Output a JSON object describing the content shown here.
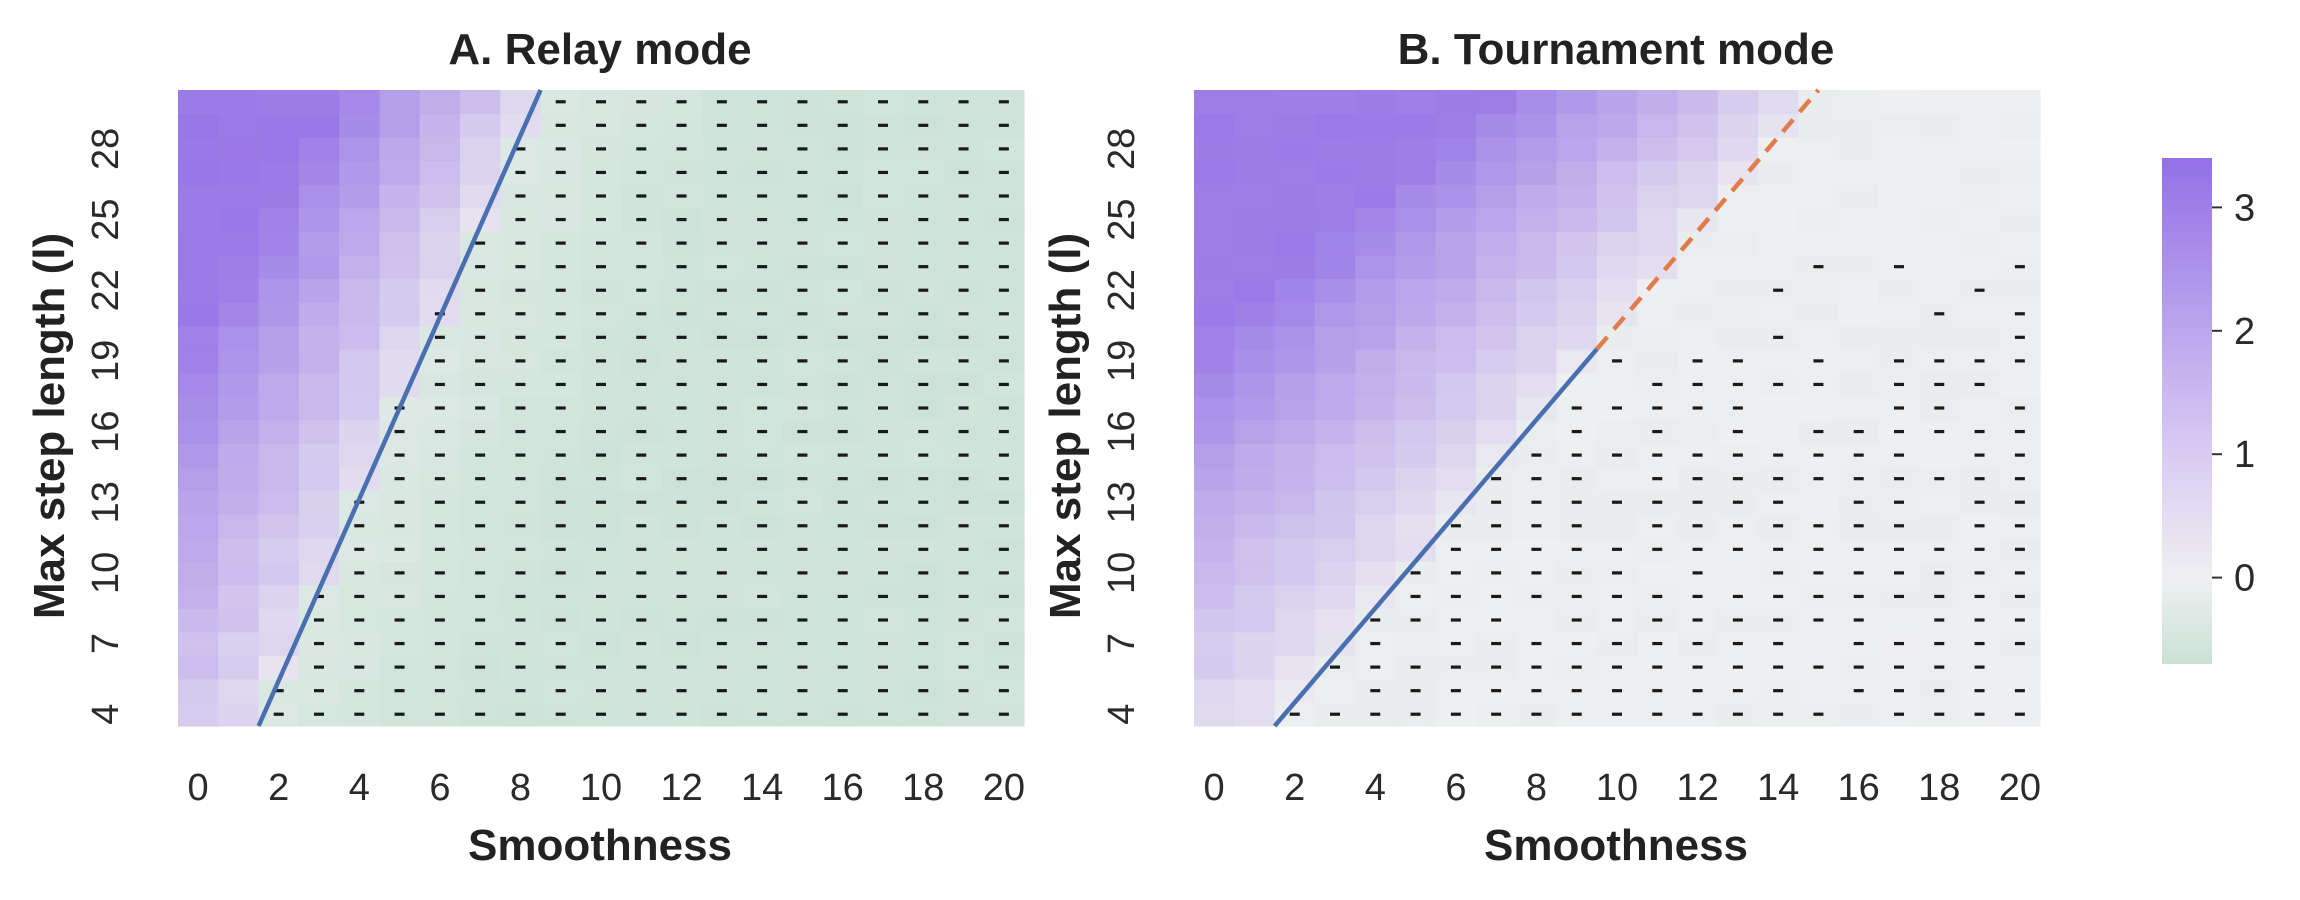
{
  "chart_data": {
    "type": "heatmap",
    "panels": [
      {
        "title": "A. Relay mode",
        "xlabel": "Smoothness",
        "ylabel": "Max step length (l)",
        "x_tick_labels": [
          "0",
          "2",
          "4",
          "6",
          "8",
          "10",
          "12",
          "14",
          "16",
          "18",
          "20"
        ],
        "y_tick_labels": [
          "4",
          "7",
          "10",
          "13",
          "16",
          "19",
          "22",
          "25",
          "28"
        ],
        "x_range": [
          0,
          20
        ],
        "y_range": [
          4,
          30
        ],
        "boundary_lines": [
          {
            "style": "solid",
            "color": "#4a6fb0",
            "from": [
              1.5,
              3.5
            ],
            "to": [
              8.5,
              30.5
            ]
          }
        ],
        "marker": "-",
        "marker_description": "dash marks cells where value is not positive"
      },
      {
        "title": "B. Tournament mode",
        "xlabel": "Smoothness",
        "ylabel": "Max step length (l)",
        "x_tick_labels": [
          "0",
          "2",
          "4",
          "6",
          "8",
          "10",
          "12",
          "14",
          "16",
          "18",
          "20"
        ],
        "y_tick_labels": [
          "4",
          "7",
          "10",
          "13",
          "16",
          "19",
          "22",
          "25",
          "28"
        ],
        "x_range": [
          0,
          20
        ],
        "y_range": [
          4,
          30
        ],
        "boundary_lines": [
          {
            "style": "solid",
            "color": "#4a6fb0",
            "from": [
              1.5,
              3.5
            ],
            "to": [
              9.5,
              19.5
            ]
          },
          {
            "style": "dashed",
            "color": "#e07b4a",
            "from": [
              9.5,
              19.5
            ],
            "to": [
              15,
              30.5
            ]
          }
        ],
        "marker": "-",
        "marker_description": "dash marks cells where value is not positive"
      }
    ],
    "colorbar": {
      "tick_labels": [
        "3",
        "2",
        "1",
        "0"
      ],
      "ticks": [
        3,
        2,
        1,
        0
      ],
      "range": [
        -0.7,
        3.4
      ],
      "colors": {
        "high": "#9370e6",
        "mid": "#efeff1",
        "low": "#c9e2d6"
      }
    }
  }
}
